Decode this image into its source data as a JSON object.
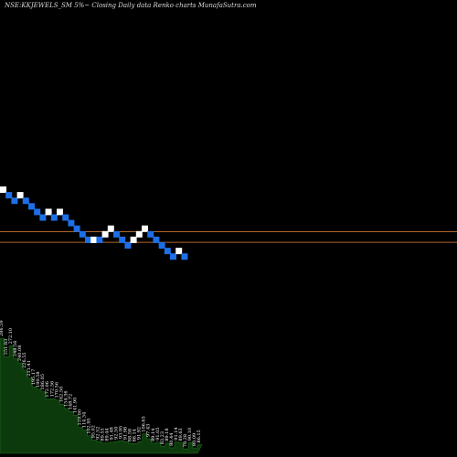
{
  "chart_data": {
    "type": "renko",
    "title": "NSE:KKJEWELS_SM 5%~  Closing Daily data  Renko  charts MunafaSutra.com",
    "colors": {
      "background": "#000000",
      "up_brick": "#ffffff",
      "down_brick": "#1e6fe6",
      "reference_line": "#b0662a",
      "volume_fill": "#0d3a0d",
      "volume_stroke": "#1f6b1f"
    },
    "bricks": [
      {
        "level": 0,
        "dir": "up"
      },
      {
        "level": 1,
        "dir": "down"
      },
      {
        "level": 2,
        "dir": "down"
      },
      {
        "level": 1,
        "dir": "up"
      },
      {
        "level": 2,
        "dir": "down"
      },
      {
        "level": 3,
        "dir": "down"
      },
      {
        "level": 4,
        "dir": "down"
      },
      {
        "level": 5,
        "dir": "down"
      },
      {
        "level": 4,
        "dir": "up"
      },
      {
        "level": 5,
        "dir": "down"
      },
      {
        "level": 4,
        "dir": "up"
      },
      {
        "level": 5,
        "dir": "down"
      },
      {
        "level": 6,
        "dir": "down"
      },
      {
        "level": 7,
        "dir": "down"
      },
      {
        "level": 8,
        "dir": "down"
      },
      {
        "level": 9,
        "dir": "down"
      },
      {
        "level": 9,
        "dir": "up"
      },
      {
        "level": 9,
        "dir": "down"
      },
      {
        "level": 8,
        "dir": "up"
      },
      {
        "level": 7,
        "dir": "up"
      },
      {
        "level": 8,
        "dir": "down"
      },
      {
        "level": 9,
        "dir": "down"
      },
      {
        "level": 10,
        "dir": "down"
      },
      {
        "level": 9,
        "dir": "up"
      },
      {
        "level": 8,
        "dir": "up"
      },
      {
        "level": 7,
        "dir": "up"
      },
      {
        "level": 8,
        "dir": "down"
      },
      {
        "level": 9,
        "dir": "down"
      },
      {
        "level": 10,
        "dir": "down"
      },
      {
        "level": 11,
        "dir": "down"
      },
      {
        "level": 12,
        "dir": "down"
      },
      {
        "level": 11,
        "dir": "up"
      },
      {
        "level": 12,
        "dir": "down"
      }
    ],
    "reference_levels": [
      8.2,
      10.1
    ],
    "volume_labels": [
      "286.59",
      "251.83",
      "272.10",
      "248.56",
      "240.08",
      "226.55",
      "211.41",
      "195.17",
      "190.58",
      "186.05",
      "172.06",
      "172.56",
      "170.56",
      "162.50",
      "154.36",
      "148.72",
      "141.90",
      "119.00",
      "114.34",
      "102.95",
      "95.02",
      "92.52",
      "89.55",
      "89.44",
      "91.48",
      "92.50",
      "93.95",
      "91.98",
      "88.58",
      "88.14",
      "91.92",
      "106.65",
      "97.43",
      "89.14",
      "91.05",
      "83.23",
      "89.18",
      "80.44",
      "91.14",
      "89.63",
      "78.28",
      "90.10",
      "80.09",
      "86.15"
    ],
    "volume_values": [
      286.59,
      251.83,
      272.1,
      248.56,
      240.08,
      226.55,
      211.41,
      195.17,
      190.58,
      186.05,
      172.06,
      172.56,
      170.56,
      162.5,
      154.36,
      148.72,
      141.9,
      119.0,
      114.34,
      102.95,
      95.02,
      92.52,
      89.55,
      89.44,
      91.48,
      92.5,
      93.95,
      91.98,
      88.58,
      88.14,
      91.92,
      106.65,
      97.43,
      89.14,
      91.05,
      83.23,
      89.18,
      80.44,
      91.14,
      89.63,
      78.28,
      90.1,
      80.09,
      86.15
    ]
  }
}
